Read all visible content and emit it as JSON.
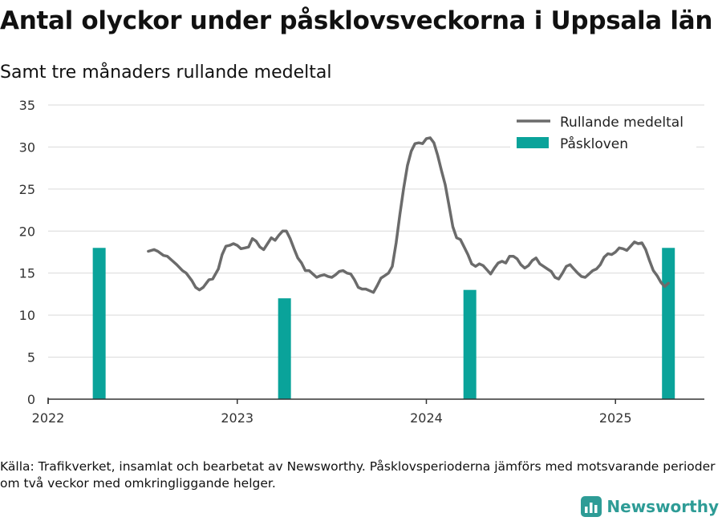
{
  "title": "Antal olyckor under påsklovsveckorna i Uppsala län",
  "subtitle": "Samt tre månaders rullande medeltal",
  "source": "Källa: Trafikverket, insamlat och bearbetat av Newsworthy. Påsklovsperioderna jämförs med motsvarande perioder om två veckor med omkringliggande helger.",
  "brand": "Newsworthy",
  "colors": {
    "line": "#6b6b6b",
    "bar": "#0aa39a",
    "grid": "#d9d9d9",
    "axis": "#333333",
    "brand": "#2e9c96"
  },
  "icons": {
    "brand": "newsworthy-chart-logo-icon"
  },
  "chart_data": {
    "type": "bar+line",
    "xlim": [
      2022.0,
      2025.47
    ],
    "ylim": [
      0,
      35
    ],
    "yticks": [
      0,
      5,
      10,
      15,
      20,
      25,
      30,
      35
    ],
    "xticks": [
      2022,
      2023,
      2024,
      2025
    ],
    "xtick_labels": [
      "2022",
      "2023",
      "2024",
      "2025"
    ],
    "grid": "horizontal",
    "legend_position": "top-right",
    "series": [
      {
        "name": "Påskloven",
        "type": "bar",
        "x": [
          2022.27,
          2023.25,
          2024.23,
          2025.28
        ],
        "values": [
          18,
          12,
          13,
          18
        ]
      },
      {
        "name": "Rullande medeltal",
        "type": "line",
        "x": [
          2022.53,
          2022.56,
          2022.58,
          2022.61,
          2022.63,
          2022.66,
          2022.68,
          2022.71,
          2022.73,
          2022.76,
          2022.78,
          2022.8,
          2022.82,
          2022.85,
          2022.87,
          2022.9,
          2022.92,
          2022.94,
          2022.96,
          2022.98,
          2023.0,
          2023.02,
          2023.04,
          2023.06,
          2023.08,
          2023.1,
          2023.12,
          2023.14,
          2023.16,
          2023.18,
          2023.2,
          2023.22,
          2023.24,
          2023.26,
          2023.28,
          2023.3,
          2023.32,
          2023.34,
          2023.36,
          2023.38,
          2023.4,
          2023.42,
          2023.44,
          2023.46,
          2023.48,
          2023.5,
          2023.52,
          2023.54,
          2023.56,
          2023.58,
          2023.6,
          2023.62,
          2023.64,
          2023.66,
          2023.68,
          2023.7,
          2023.72,
          2023.74,
          2023.76,
          2023.78,
          2023.8,
          2023.82,
          2023.84,
          2023.86,
          2023.88,
          2023.9,
          2023.92,
          2023.94,
          2023.96,
          2023.98,
          2024.0,
          2024.02,
          2024.04,
          2024.06,
          2024.08,
          2024.1,
          2024.12,
          2024.14,
          2024.16,
          2024.18,
          2024.2,
          2024.22,
          2024.24,
          2024.26,
          2024.28,
          2024.3,
          2024.32,
          2024.34,
          2024.36,
          2024.38,
          2024.4,
          2024.42,
          2024.44,
          2024.46,
          2024.48,
          2024.5,
          2024.52,
          2024.54,
          2024.56,
          2024.58,
          2024.6,
          2024.62,
          2024.64,
          2024.66,
          2024.68,
          2024.7,
          2024.72,
          2024.74,
          2024.76,
          2024.78,
          2024.8,
          2024.82,
          2024.84,
          2024.86,
          2024.88,
          2024.9,
          2024.92,
          2024.94,
          2024.96,
          2024.98,
          2025.0,
          2025.02,
          2025.04,
          2025.06,
          2025.08,
          2025.1,
          2025.12,
          2025.14,
          2025.16,
          2025.18,
          2025.2,
          2025.22,
          2025.24,
          2025.26,
          2025.28
        ],
        "values": [
          17.6,
          17.8,
          17.6,
          17.1,
          17.0,
          16.4,
          16.0,
          15.3,
          15.0,
          14.1,
          13.3,
          13.0,
          13.3,
          14.2,
          14.3,
          15.5,
          17.2,
          18.2,
          18.3,
          18.5,
          18.3,
          17.9,
          18.0,
          18.1,
          19.1,
          18.8,
          18.1,
          17.8,
          18.5,
          19.2,
          18.9,
          19.5,
          20.0,
          20.0,
          19.1,
          17.9,
          16.8,
          16.2,
          15.3,
          15.3,
          14.9,
          14.5,
          14.7,
          14.8,
          14.6,
          14.5,
          14.8,
          15.2,
          15.3,
          15.0,
          14.9,
          14.2,
          13.3,
          13.1,
          13.1,
          12.9,
          12.7,
          13.5,
          14.4,
          14.7,
          15.0,
          15.8,
          18.6,
          22.0,
          25.1,
          27.8,
          29.5,
          30.4,
          30.5,
          30.4,
          31.0,
          31.1,
          30.5,
          29.0,
          27.2,
          25.5,
          23.0,
          20.5,
          19.2,
          19.0,
          18.1,
          17.2,
          16.1,
          15.8,
          16.1,
          15.9,
          15.4,
          14.9,
          15.6,
          16.2,
          16.4,
          16.2,
          17.0,
          17.0,
          16.7,
          16.0,
          15.6,
          15.9,
          16.5,
          16.8,
          16.1,
          15.8,
          15.5,
          15.2,
          14.5,
          14.3,
          15.0,
          15.8,
          16.0,
          15.5,
          15.0,
          14.6,
          14.5,
          14.9,
          15.3,
          15.5,
          16.0,
          16.9,
          17.3,
          17.2,
          17.5,
          18.0,
          17.9,
          17.7,
          18.2,
          18.7,
          18.5,
          18.6,
          17.8,
          16.5,
          15.3,
          14.7,
          13.9,
          13.4,
          13.8
        ]
      }
    ]
  }
}
